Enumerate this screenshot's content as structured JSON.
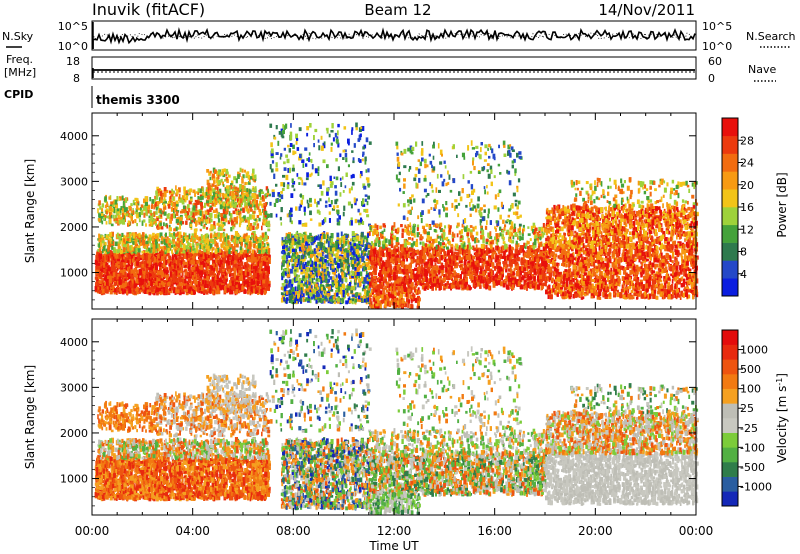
{
  "header": {
    "station": "Inuvik (fitACF)",
    "beam": "Beam 12",
    "date": "14/Nov/2011"
  },
  "top_panels": {
    "nsky_label": "N.Sky",
    "nsky_ticks": [
      "10^5",
      "10^0"
    ],
    "nsearch_label": "N.Search",
    "nsearch_ticks": [
      "10^5",
      "10^0"
    ],
    "freq_label": "Freq.",
    "freq_unit": "[MHz]",
    "freq_ticks": [
      "18",
      "8"
    ],
    "nave_label": "Nave",
    "nave_ticks": [
      "60",
      "0"
    ],
    "cpid_label": "CPID",
    "cpid_value": "themis 3300"
  },
  "chart_data": [
    {
      "type": "heatmap",
      "parameter": "power",
      "ylabel": "Slant Range [km]",
      "xlabel": "Time UT",
      "xticks": [
        "00:00",
        "04:00",
        "08:00",
        "12:00",
        "16:00",
        "20:00",
        "00:00"
      ],
      "yticks": [
        "1000",
        "2000",
        "3000",
        "4000"
      ],
      "ylim": [
        200,
        4500
      ],
      "xlim_hours": [
        0,
        24
      ],
      "colorbar_label": "Power [dB]",
      "colorbar_ticks": [
        "28",
        "24",
        "20",
        "16",
        "12",
        "8",
        "4"
      ],
      "colorbar_colors": [
        "#0b1ee0",
        "#2448c8",
        "#2e7a4e",
        "#44a23a",
        "#9ed23a",
        "#f2c418",
        "#f79a12",
        "#f26c10",
        "#ec3a0e",
        "#e8100c"
      ]
    },
    {
      "type": "heatmap",
      "parameter": "velocity",
      "ylabel": "Slant Range [km]",
      "xlabel": "Time UT",
      "xticks": [
        "00:00",
        "04:00",
        "08:00",
        "12:00",
        "16:00",
        "20:00",
        "00:00"
      ],
      "yticks": [
        "1000",
        "2000",
        "3000",
        "4000"
      ],
      "ylim": [
        200,
        4500
      ],
      "xlim_hours": [
        0,
        24
      ],
      "colorbar_label": "Velocity [m s^-1]",
      "colorbar_ticks": [
        "1000",
        "500",
        "100",
        "25",
        "-25",
        "-100",
        "-500",
        "-1000"
      ],
      "colorbar_colors": [
        "#1428b8",
        "#2a5ea0",
        "#2f7d4a",
        "#52b043",
        "#7ccc3a",
        "#c8c8c0",
        "#bebeb6",
        "#f5a020",
        "#f27a12",
        "#ee5410",
        "#e82a0e",
        "#e40c0c"
      ]
    }
  ]
}
